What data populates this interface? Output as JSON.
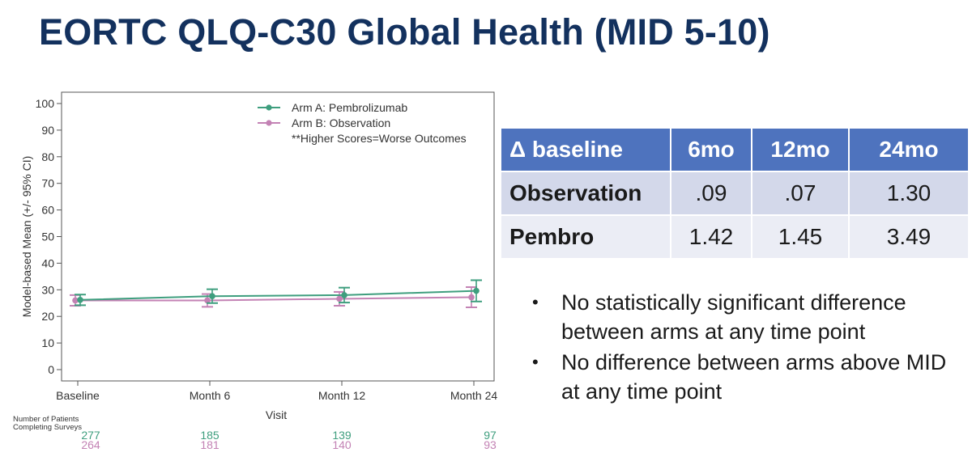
{
  "slide": {
    "title": "EORTC QLQ-C30 Global Health (MID 5-10)"
  },
  "chart_data": {
    "type": "line",
    "xlabel": "Visit",
    "ylabel": "Model-based Mean (+/- 95% CI)",
    "ylim": [
      0,
      100
    ],
    "yticks": [
      0,
      10,
      20,
      30,
      40,
      50,
      60,
      70,
      80,
      90,
      100
    ],
    "categories": [
      "Baseline",
      "Month 6",
      "Month 12",
      "Month 24"
    ],
    "legend_placement": "top-right",
    "annotation": "**Higher Scores=Worse Outcomes",
    "series": [
      {
        "name": "Arm A: Pembrolizumab",
        "color": "#3e9e7e",
        "values": [
          26.2,
          27.6,
          28.0,
          29.6
        ],
        "ci_low": [
          24.2,
          25.0,
          25.2,
          25.6
        ],
        "ci_high": [
          28.2,
          30.2,
          30.8,
          33.6
        ]
      },
      {
        "name": "Arm B: Observation",
        "color": "#c382b4",
        "values": [
          26.0,
          26.0,
          26.6,
          27.2
        ],
        "ci_low": [
          24.0,
          23.6,
          24.0,
          23.4
        ],
        "ci_high": [
          28.0,
          28.4,
          29.2,
          31.0
        ]
      }
    ],
    "patients_label": [
      "Number of Patients",
      "Completing Surveys"
    ],
    "patients": [
      {
        "series": "Arm A: Pembrolizumab",
        "counts": [
          "277",
          "185",
          "139",
          "97"
        ]
      },
      {
        "series": "Arm B: Observation",
        "counts": [
          "264",
          "181",
          "140",
          "93"
        ]
      }
    ]
  },
  "table": {
    "headers": [
      "Δ baseline",
      "6mo",
      "12mo",
      "24mo"
    ],
    "rows": [
      [
        "Observation",
        ".09",
        ".07",
        "1.30"
      ],
      [
        "Pembro",
        "1.42",
        "1.45",
        "3.49"
      ]
    ]
  },
  "bullets": [
    "No statistically significant difference between arms at any time point",
    "No difference between arms above MID at any time point"
  ]
}
